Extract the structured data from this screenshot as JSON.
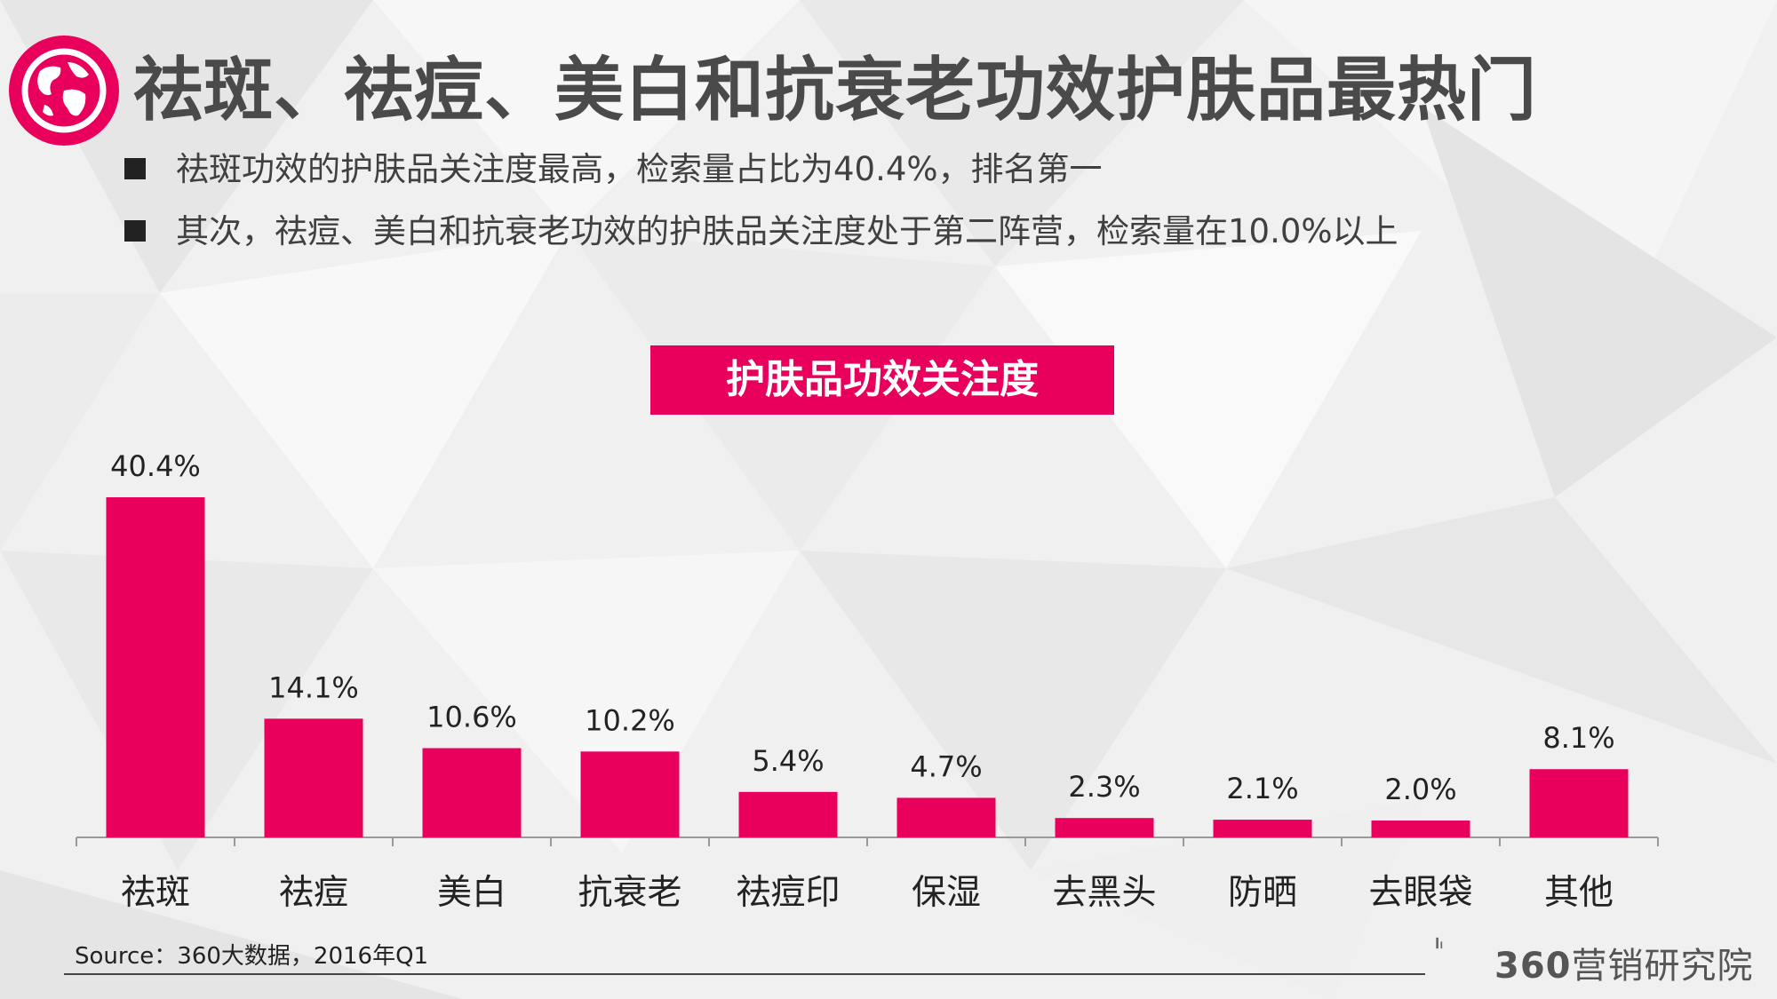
{
  "header": {
    "title": "祛斑、祛痘、美白和抗衰老功效护肤品最热门",
    "icon": "globe-icon",
    "accent_color": "#e8005c"
  },
  "bullets": [
    "祛斑功效的护肤品关注度最高，检索量占比为40.4%，排名第一",
    "其次，祛痘、美白和抗衰老功效的护肤品关注度处于第二阵营，检索量在10.0%以上"
  ],
  "chart_data": {
    "type": "bar",
    "title": "护肤品功效关注度",
    "categories": [
      "祛斑",
      "祛痘",
      "美白",
      "抗衰老",
      "祛痘印",
      "保湿",
      "去黑头",
      "防晒",
      "去眼袋",
      "其他"
    ],
    "values": [
      40.4,
      14.1,
      10.6,
      10.2,
      5.4,
      4.7,
      2.3,
      2.1,
      2.0,
      8.1
    ],
    "value_labels": [
      "40.4%",
      "14.1%",
      "10.6%",
      "10.2%",
      "5.4%",
      "4.7%",
      "2.3%",
      "2.1%",
      "2.0%",
      "8.1%"
    ],
    "xlabel": "",
    "ylabel": "",
    "ylim": [
      0,
      45
    ],
    "grid": false,
    "bar_color": "#e8005c"
  },
  "footer": {
    "source": "Source：360大数据，2016年Q1",
    "brand_num": "360",
    "brand_text": "营销研究院"
  }
}
